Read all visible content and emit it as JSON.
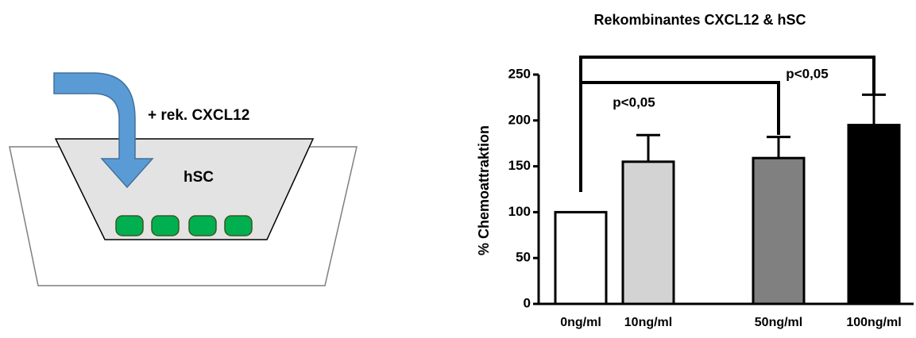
{
  "diagram": {
    "labels": [
      "+ rek. CXCL12",
      "hSC"
    ]
  },
  "chart_data": {
    "type": "bar",
    "title": "Rekombinantes CXCL12 & hSC",
    "y_label": "% Chemoattraktion",
    "categories": [
      "0ng/ml",
      "10ng/ml",
      "50ng/ml",
      "100ng/ml"
    ],
    "values": [
      100,
      155,
      159,
      195
    ],
    "errors": [
      0,
      29,
      23,
      33
    ],
    "colors": [
      "#ffffff",
      "#d3d3d3",
      "#808080",
      "#000000"
    ],
    "ylim": [
      0,
      250
    ],
    "yticks": [
      0,
      50,
      100,
      150,
      200,
      250
    ],
    "annotations": [
      "p<0,05",
      "p<0,05"
    ]
  }
}
